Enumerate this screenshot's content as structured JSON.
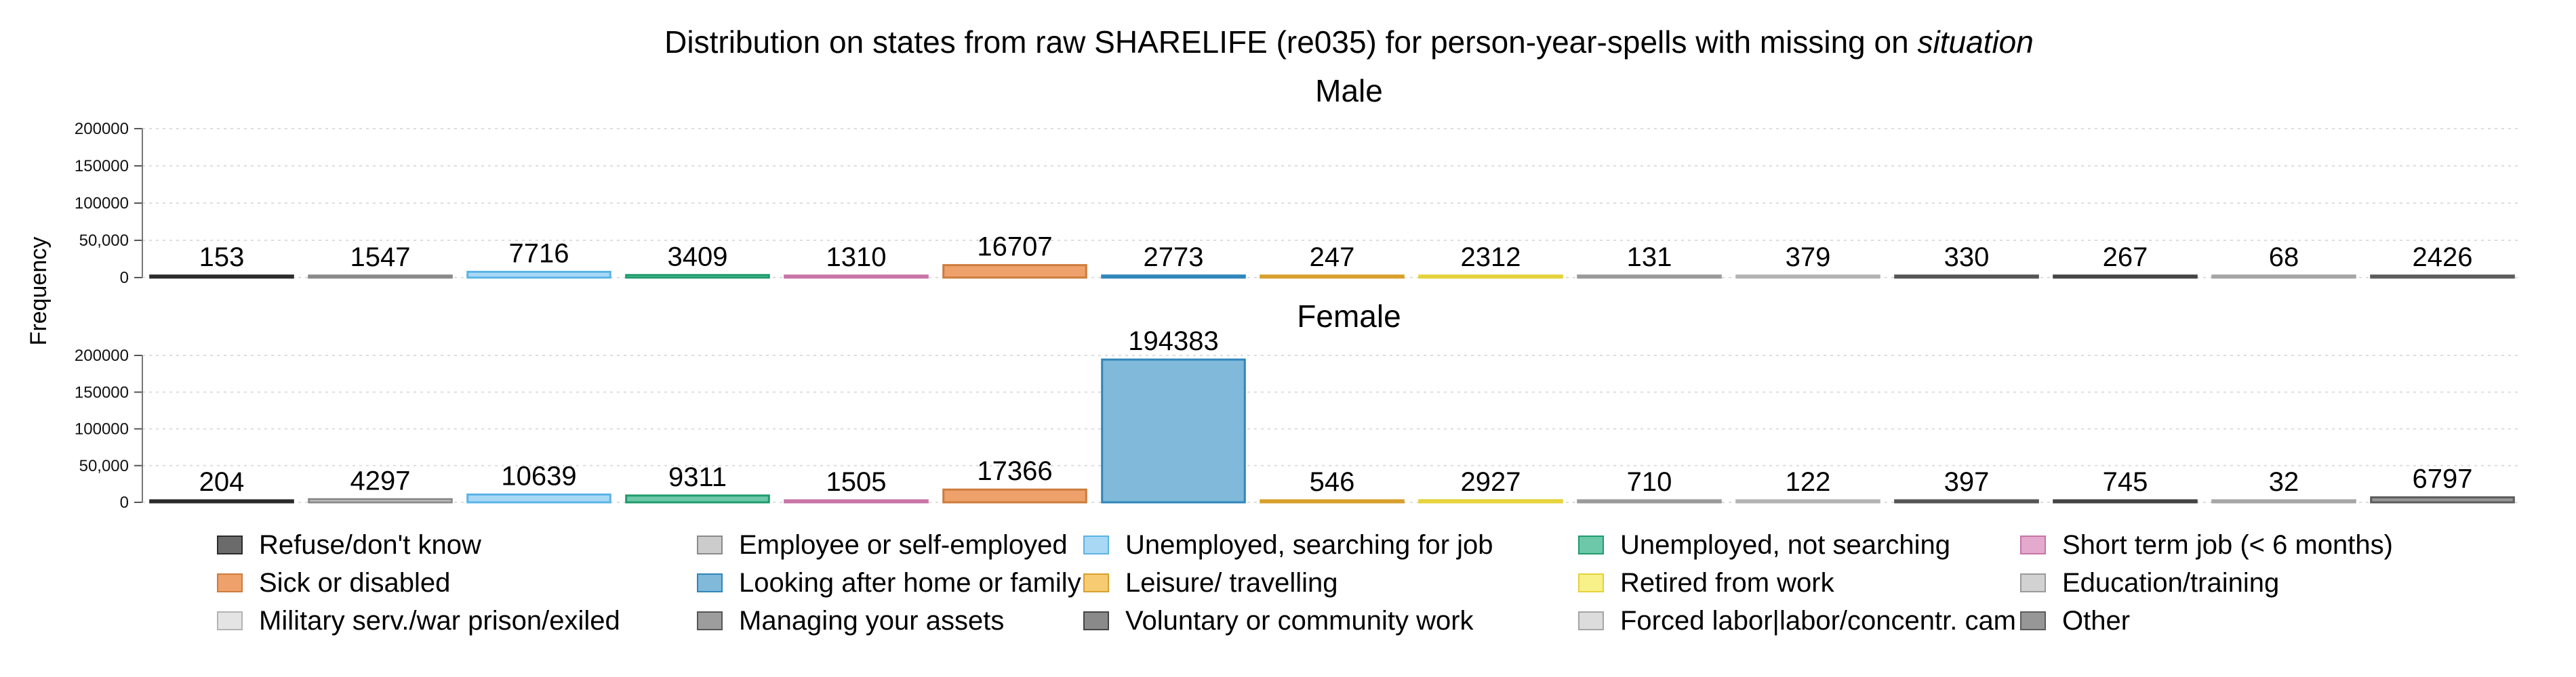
{
  "chart_data": {
    "type": "bar",
    "title_main": "Distribution on states from raw SHARELIFE (re035) for person-year-spells with missing on ",
    "title_italic": "situation",
    "ylabel": "Frequency",
    "ylim": [
      0,
      200000
    ],
    "yticks": [
      {
        "value": 0,
        "label": "0"
      },
      {
        "value": 50000,
        "label": "50,000"
      },
      {
        "value": 100000,
        "label": "100000"
      },
      {
        "value": 150000,
        "label": "150000"
      },
      {
        "value": 200000,
        "label": "200000"
      }
    ],
    "grid": true,
    "legend_position": "bottom",
    "categories": [
      "Refuse/don't know",
      "Employee or self-employed",
      "Unemployed, searching for job",
      "Unemployed, not searching",
      "Short term job (< 6 months)",
      "Sick or disabled",
      "Looking after home or family",
      "Leisure/ travelling",
      "Retired from work",
      "Education/training",
      "Military serv./war prison/exiled",
      "Managing your assets",
      "Voluntary or community work",
      "Forced labor|labor/concentr. cam",
      "Other"
    ],
    "colors": [
      "#6b6b6b",
      "#cccccc",
      "#a9d8f5",
      "#6cc8a8",
      "#e3aacd",
      "#eea16a",
      "#80b9da",
      "#f6cb72",
      "#f8f089",
      "#d2d2d2",
      "#e4e4e4",
      "#9d9d9d",
      "#8a8a8a",
      "#dcdcdc",
      "#979797"
    ],
    "border_colors": [
      "#2b2b2b",
      "#8a8a8a",
      "#5ab4e6",
      "#1f9b6c",
      "#c974a6",
      "#cd7c3d",
      "#2f86bb",
      "#d8a02c",
      "#e4d23a",
      "#9a9a9a",
      "#b3b3b3",
      "#555555",
      "#444444",
      "#a5a5a5",
      "#5c5c5c"
    ],
    "panels": [
      {
        "name": "Male",
        "values": [
          153,
          1547,
          7716,
          3409,
          1310,
          16707,
          2773,
          247,
          2312,
          131,
          379,
          330,
          267,
          68,
          2426
        ]
      },
      {
        "name": "Female",
        "values": [
          204,
          4297,
          10639,
          9311,
          1505,
          17366,
          194383,
          546,
          2927,
          710,
          122,
          397,
          745,
          32,
          6797
        ]
      }
    ]
  }
}
